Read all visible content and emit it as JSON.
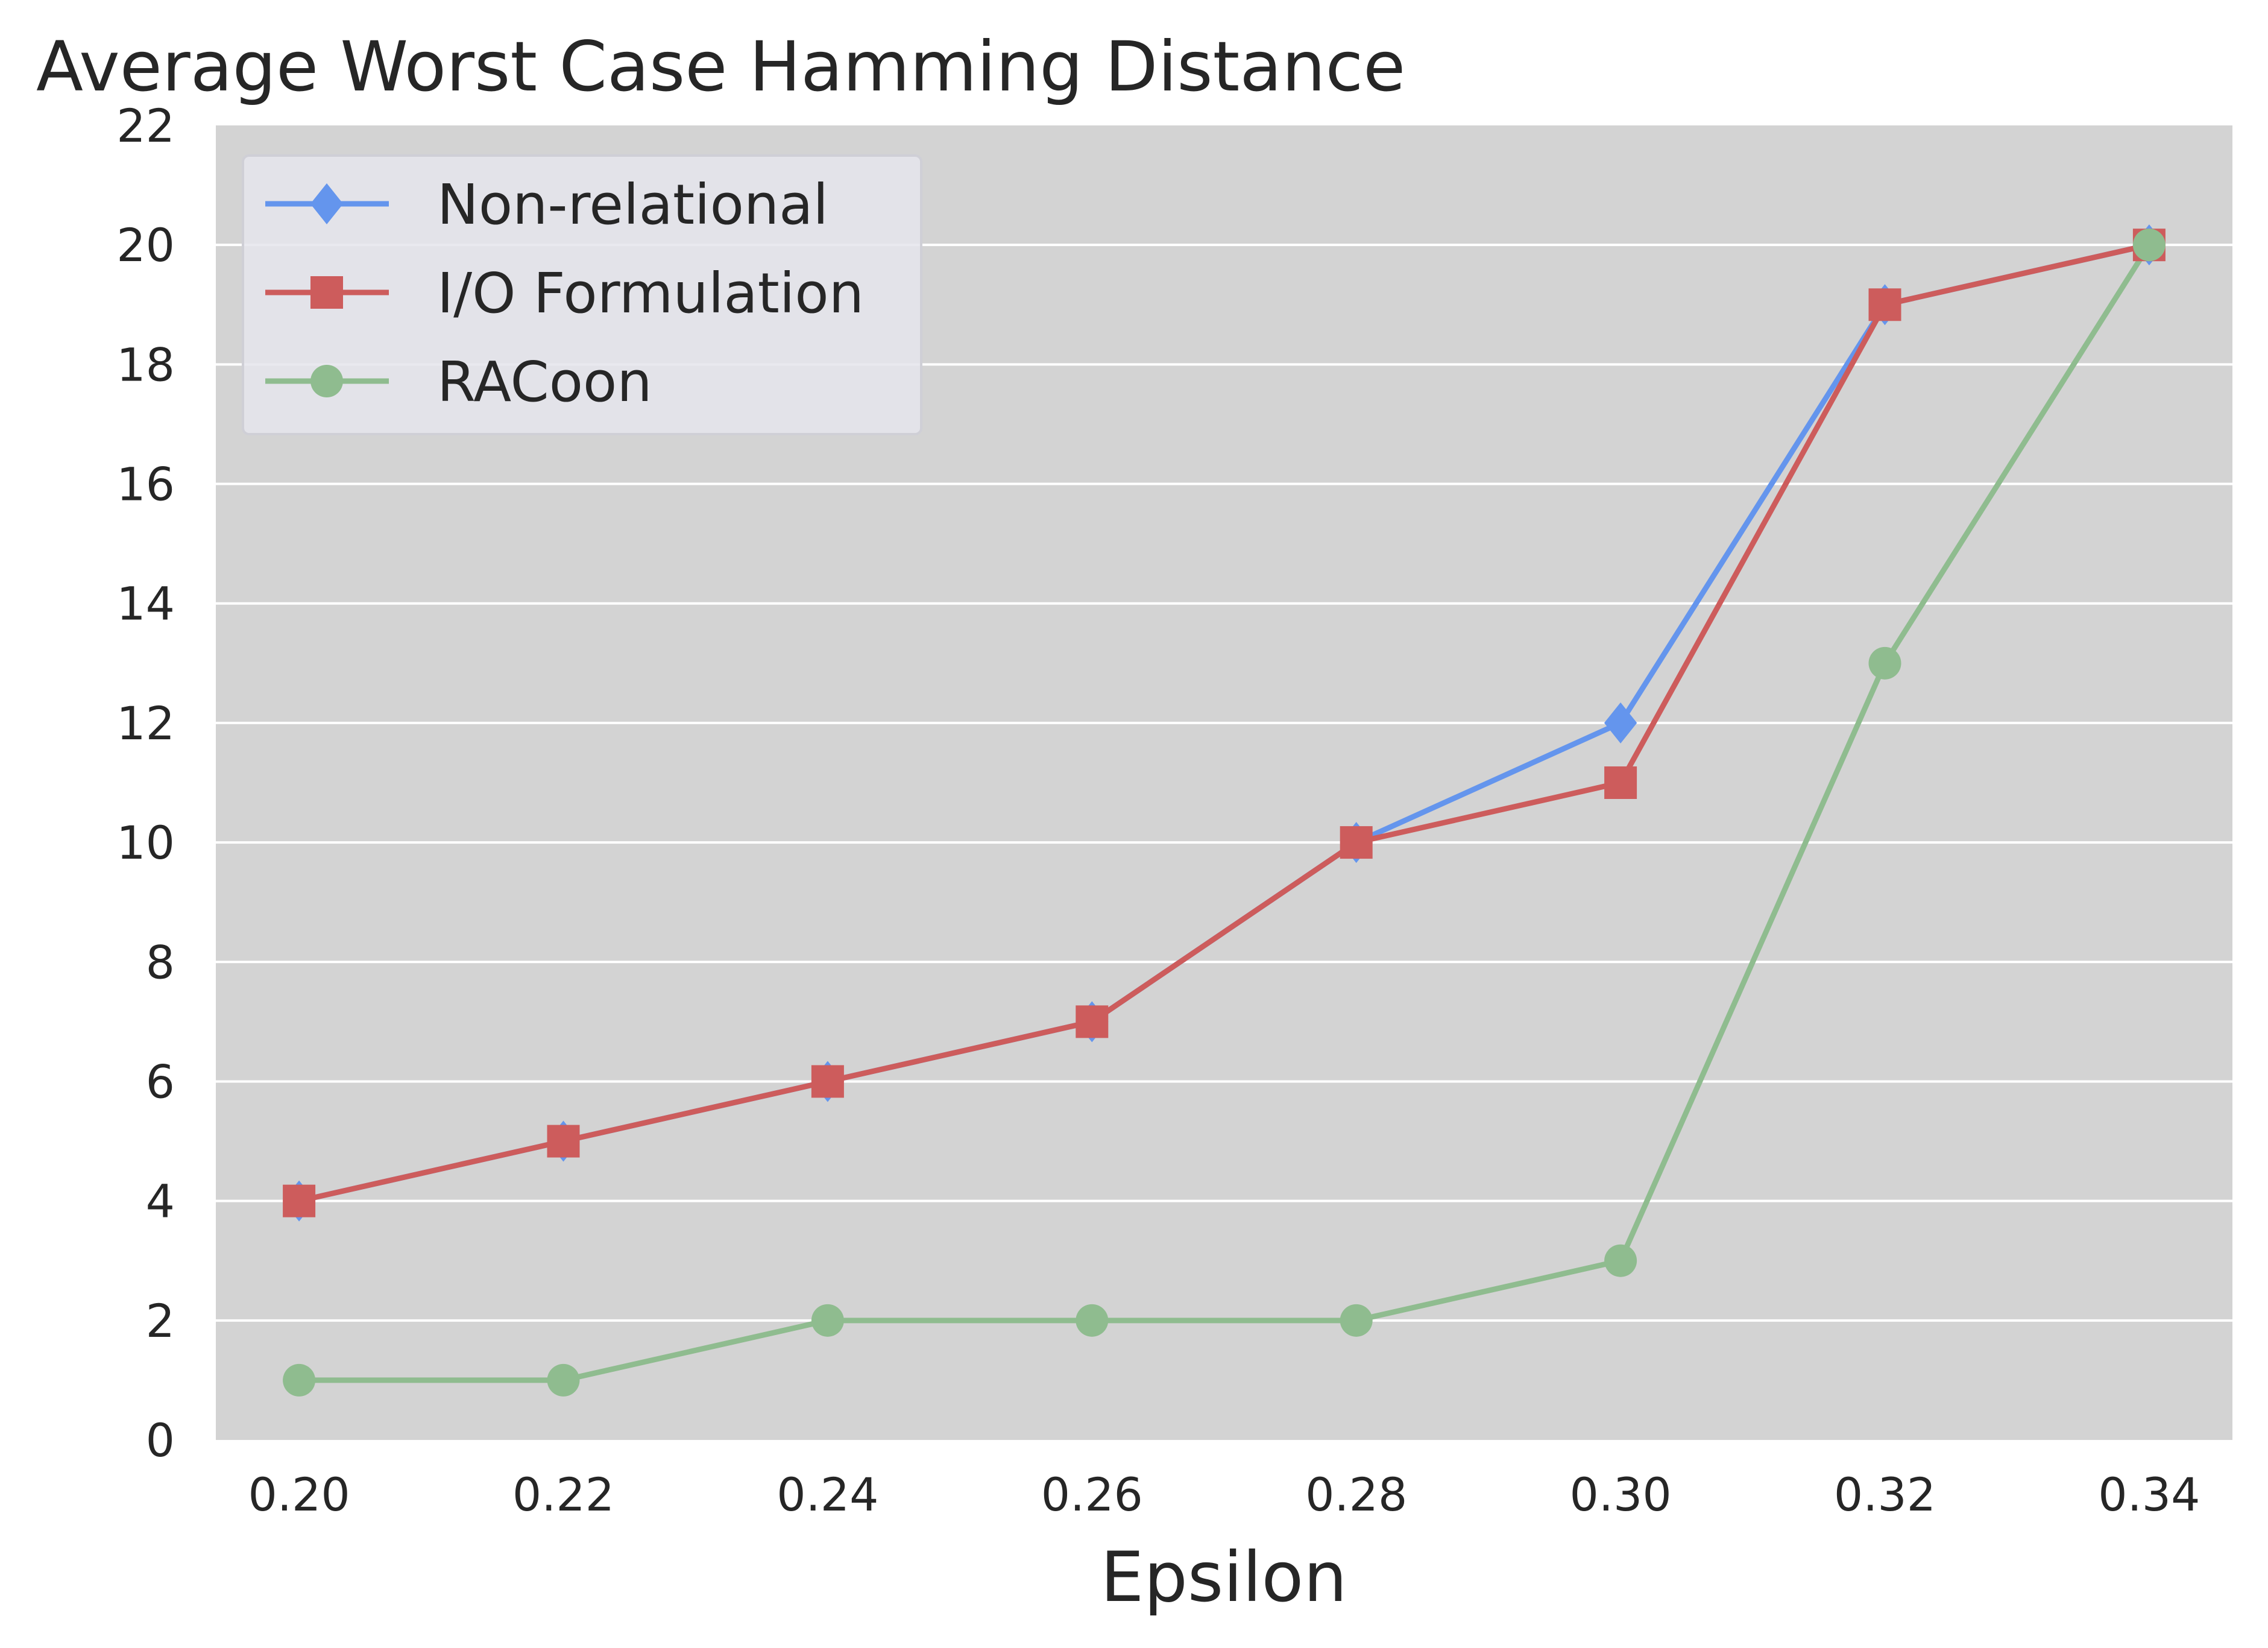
{
  "chart_data": {
    "type": "line",
    "title": "Average Worst Case Hamming Distance",
    "xlabel": "Epsilon",
    "ylabel": "",
    "x": [
      "0.20",
      "0.22",
      "0.24",
      "0.26",
      "0.28",
      "0.30",
      "0.32",
      "0.34"
    ],
    "x_values": [
      0.2,
      0.22,
      0.24,
      0.26,
      0.28,
      0.3,
      0.32,
      0.34
    ],
    "xlim": [
      0.1937,
      0.3463
    ],
    "ylim": [
      0,
      22
    ],
    "yticks": [
      "0",
      "2",
      "4",
      "6",
      "8",
      "10",
      "12",
      "14",
      "16",
      "18",
      "20",
      "22"
    ],
    "ytick_values": [
      0,
      2,
      4,
      6,
      8,
      10,
      12,
      14,
      16,
      18,
      20,
      22
    ],
    "grid": "horizontal",
    "background_color": "#d3d3d3",
    "legend_placement": "top-left",
    "series": [
      {
        "name": "Non-relational",
        "marker": "diamond",
        "color": "#6495ed",
        "values": [
          4,
          5,
          6,
          7,
          10,
          12,
          19,
          20
        ]
      },
      {
        "name": "I/O Formulation",
        "marker": "square",
        "color": "#cd5c5c",
        "values": [
          4,
          5,
          6,
          7,
          10,
          11,
          19,
          20
        ]
      },
      {
        "name": "RACoon",
        "marker": "circle",
        "color": "#8fbc8f",
        "values": [
          1,
          1,
          2,
          2,
          2,
          3,
          13,
          20
        ]
      }
    ]
  }
}
